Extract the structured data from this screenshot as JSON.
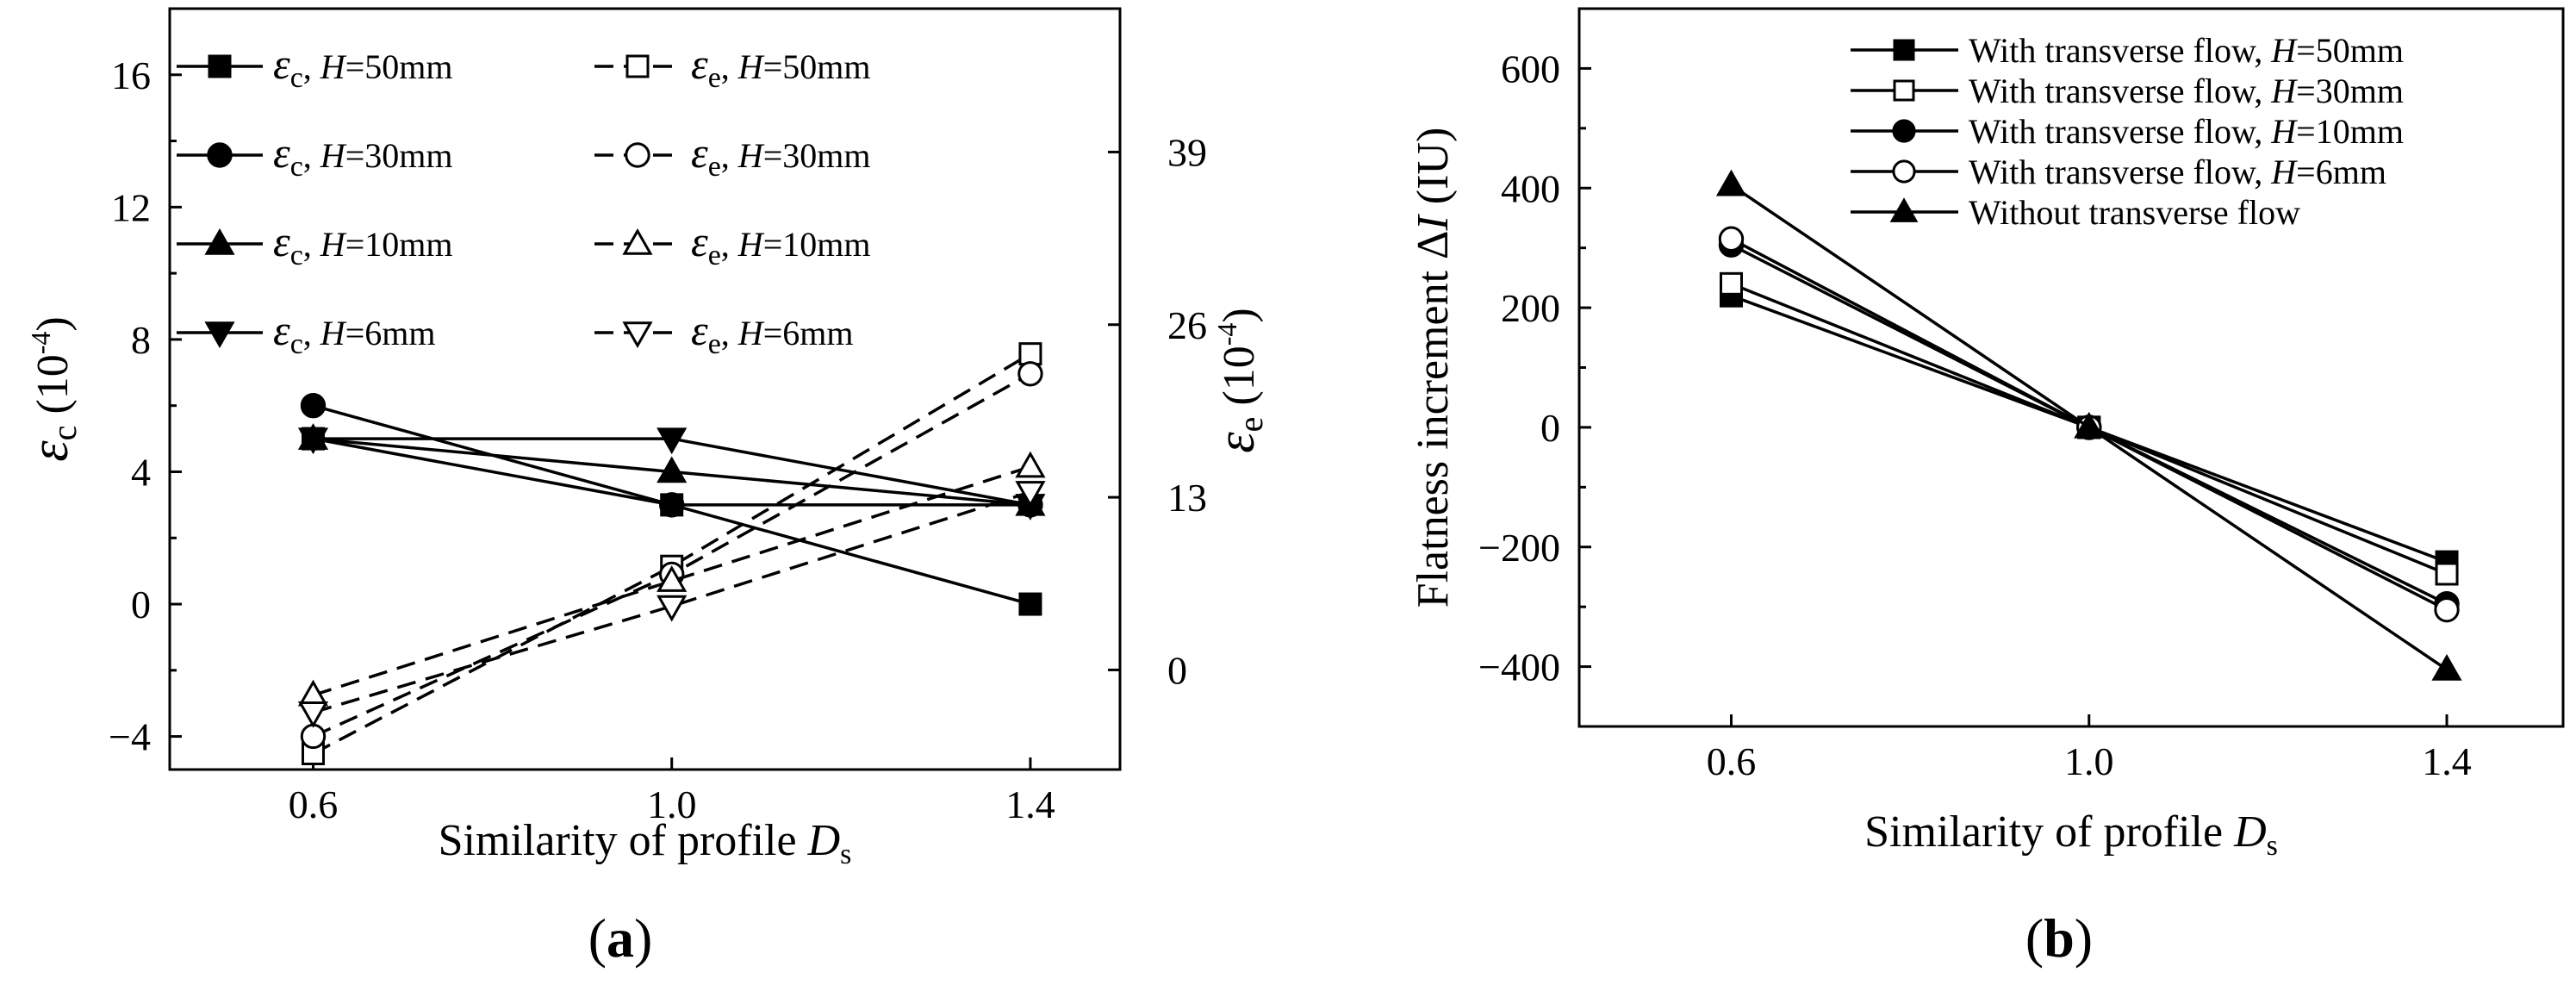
{
  "figure": {
    "panel_a_label": "(a)",
    "panel_b_label": "(b)"
  },
  "colors": {
    "line": "#000000",
    "background": "#ffffff"
  },
  "chart_data": [
    {
      "id": "a",
      "type": "line",
      "title": "",
      "panel_label": "(a)",
      "xlabel": "Similarity of profile D_s",
      "ylabel_left": "ε_c (10^-4)",
      "ylabel_right": "ε_e (10^-4)",
      "x": [
        0.6,
        1.0,
        1.4
      ],
      "xticks": [
        "0.6",
        "1.0",
        "1.4"
      ],
      "xlim": [
        0.44,
        1.5
      ],
      "ylim_left": [
        -5,
        18
      ],
      "yticks_left": [
        "-4",
        "0",
        "4",
        "8",
        "12",
        "16"
      ],
      "ylim_right": [
        -7.5,
        49.8
      ],
      "yticks_right": [
        "0",
        "13",
        "26",
        "39"
      ],
      "grid": false,
      "legend_position": "top-left",
      "series": [
        {
          "name": "ε_c, H=50mm",
          "symbol": "ε",
          "sub": "c",
          "H": "50mm",
          "marker": "square",
          "filled": true,
          "dash": false,
          "axis": "left",
          "values": [
            5,
            3,
            0
          ]
        },
        {
          "name": "ε_c, H=30mm",
          "symbol": "ε",
          "sub": "c",
          "H": "30mm",
          "marker": "circle",
          "filled": true,
          "dash": false,
          "axis": "left",
          "values": [
            6,
            3,
            3
          ]
        },
        {
          "name": "ε_c, H=10mm",
          "symbol": "ε",
          "sub": "c",
          "H": "10mm",
          "marker": "triangle-up",
          "filled": true,
          "dash": false,
          "axis": "left",
          "values": [
            5,
            4,
            3
          ]
        },
        {
          "name": "ε_c, H=6mm",
          "symbol": "ε",
          "sub": "c",
          "H": "6mm",
          "marker": "triangle-down",
          "filled": true,
          "dash": false,
          "axis": "left",
          "values": [
            5,
            5,
            3
          ]
        },
        {
          "name": "ε_e, H=50mm",
          "symbol": "ε",
          "sub": "e",
          "H": "50mm",
          "marker": "square",
          "filled": false,
          "dash": true,
          "axis": "right",
          "values": [
            -6.3,
            7.8,
            23.8
          ]
        },
        {
          "name": "ε_e, H=30mm",
          "symbol": "ε",
          "sub": "e",
          "H": "30mm",
          "marker": "circle",
          "filled": false,
          "dash": true,
          "axis": "right",
          "values": [
            -5,
            7.2,
            22.3
          ]
        },
        {
          "name": "ε_e, H=10mm",
          "symbol": "ε",
          "sub": "e",
          "H": "10mm",
          "marker": "triangle-up",
          "filled": false,
          "dash": true,
          "axis": "right",
          "values": [
            -1.9,
            6.7,
            15.3
          ]
        },
        {
          "name": "ε_e, H=6mm",
          "symbol": "ε",
          "sub": "e",
          "H": "6mm",
          "marker": "triangle-down",
          "filled": false,
          "dash": true,
          "axis": "right",
          "values": [
            -3.2,
            4.8,
            13.4
          ]
        }
      ]
    },
    {
      "id": "b",
      "type": "line",
      "title": "",
      "panel_label": "(b)",
      "xlabel": "Similarity of profile D_s",
      "ylabel": "Flatness increment ΔI (IU)",
      "x": [
        0.6,
        1.0,
        1.4
      ],
      "xticks": [
        "0.6",
        "1.0",
        "1.4"
      ],
      "xlim": [
        0.43,
        1.53
      ],
      "ylim": [
        -500,
        700
      ],
      "yticks": [
        "-400",
        "-200",
        "0",
        "200",
        "400",
        "600"
      ],
      "grid": false,
      "legend_position": "top-right",
      "series": [
        {
          "name": "With transverse flow, H=50mm",
          "prefix": "With transverse flow, ",
          "H": "50mm",
          "marker": "square",
          "filled": true,
          "values": [
            220,
            0,
            -225
          ]
        },
        {
          "name": "With transverse flow, H=30mm",
          "prefix": "With transverse flow, ",
          "H": "30mm",
          "marker": "square",
          "filled": false,
          "values": [
            240,
            0,
            -245
          ]
        },
        {
          "name": "With transverse flow, H=10mm",
          "prefix": "With transverse flow, ",
          "H": "10mm",
          "marker": "circle",
          "filled": true,
          "values": [
            305,
            0,
            -295
          ]
        },
        {
          "name": "With transverse flow, H=6mm",
          "prefix": "With transverse flow, ",
          "H": "6mm",
          "marker": "circle",
          "filled": false,
          "values": [
            315,
            0,
            -305
          ]
        },
        {
          "name": "Without transverse flow",
          "prefix": "Without transverse flow",
          "H": "",
          "marker": "triangle-up",
          "filled": true,
          "values": [
            405,
            0,
            -405
          ]
        }
      ]
    }
  ]
}
